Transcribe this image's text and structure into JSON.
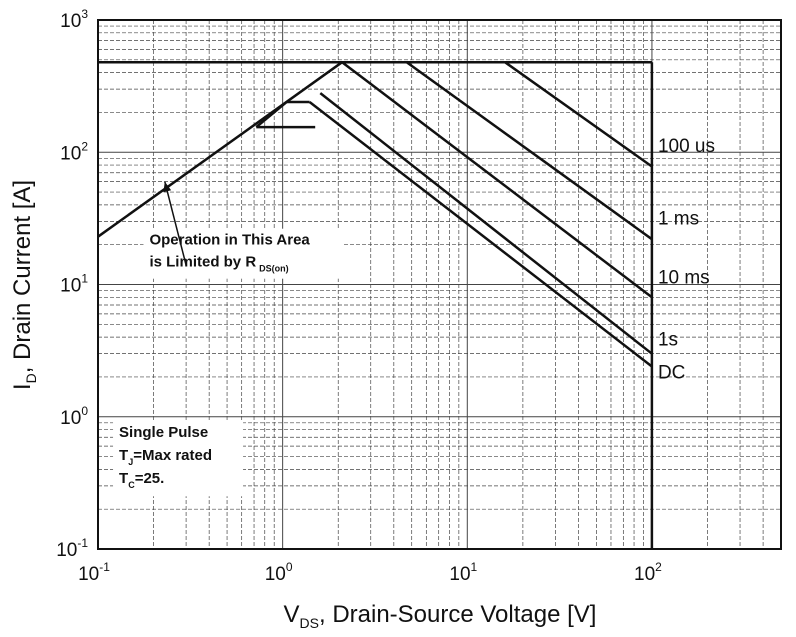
{
  "chart_data": {
    "type": "line",
    "x_scale": "log",
    "y_scale": "log",
    "xlim": [
      0.1,
      500
    ],
    "ylim": [
      0.1,
      1000
    ],
    "grid": true,
    "xlabel": {
      "main": "V",
      "sub": "DS",
      "rest": ", Drain-Source Voltage [V]"
    },
    "ylabel": {
      "main": "I",
      "sub": "D",
      "rest": ", Drain Current [A]"
    },
    "x_ticks": [
      {
        "value": 0.1,
        "base": "10",
        "exp": "-1"
      },
      {
        "value": 1,
        "base": "10",
        "exp": "0"
      },
      {
        "value": 10,
        "base": "10",
        "exp": "1"
      },
      {
        "value": 100,
        "base": "10",
        "exp": "2"
      }
    ],
    "y_ticks": [
      {
        "value": 0.1,
        "base": "10",
        "exp": "-1"
      },
      {
        "value": 1,
        "base": "10",
        "exp": "0"
      },
      {
        "value": 10,
        "base": "10",
        "exp": "1"
      },
      {
        "value": 100,
        "base": "10",
        "exp": "2"
      },
      {
        "value": 1000,
        "base": "10",
        "exp": "3"
      }
    ],
    "series": [
      {
        "name": "100 us",
        "points": [
          [
            2.1,
            480
          ],
          [
            16,
            480
          ],
          [
            100,
            78
          ]
        ],
        "label_pos": [
          100,
          113
        ]
      },
      {
        "name": "1 ms",
        "points": [
          [
            2.1,
            480
          ],
          [
            4.7,
            480
          ],
          [
            100,
            22
          ]
        ],
        "label_pos": [
          100,
          32
        ]
      },
      {
        "name": "10 ms",
        "points": [
          [
            2.1,
            480
          ],
          [
            100,
            8
          ]
        ],
        "label_pos": [
          100,
          11.5
        ]
      },
      {
        "name": "1s",
        "points": [
          [
            1.6,
            280
          ],
          [
            100,
            3
          ]
        ],
        "label_pos": [
          100,
          3.9
        ]
      },
      {
        "name": "DC",
        "points": [
          [
            1.4,
            240
          ],
          [
            100,
            2.4
          ]
        ],
        "label_pos": [
          100,
          2.2
        ]
      }
    ],
    "limit_lines": [
      {
        "points": [
          [
            0.1,
            23
          ],
          [
            2.1,
            480
          ]
        ]
      },
      {
        "points": [
          [
            0.1,
            480
          ],
          [
            100,
            480
          ]
        ]
      },
      {
        "points": [
          [
            100,
            480
          ],
          [
            100,
            0.1
          ]
        ]
      },
      {
        "points": [
          [
            1.05,
            240
          ],
          [
            1.4,
            240
          ]
        ]
      },
      {
        "points": [
          [
            0.72,
            155
          ],
          [
            1.5,
            155
          ]
        ]
      },
      {
        "points": [
          [
            0.72,
            155
          ],
          [
            1.05,
            240
          ]
        ]
      }
    ],
    "annotations": [
      {
        "lines": [
          {
            "text": "Operation in This Area"
          },
          {
            "text": "is Limited by R",
            "sub": "DS(on)"
          }
        ],
        "pos": [
          0.19,
          20
        ],
        "arrow_from": [
          0.3,
          14
        ],
        "arrow_to": [
          0.23,
          60
        ]
      },
      {
        "lines": [
          {
            "text": "Single Pulse"
          },
          {
            "main": "T",
            "sub": "J",
            "rest": "=Max rated"
          },
          {
            "main": "T",
            "sub": "C",
            "rest": "=25."
          }
        ],
        "pos": [
          0.13,
          0.7
        ]
      }
    ]
  }
}
